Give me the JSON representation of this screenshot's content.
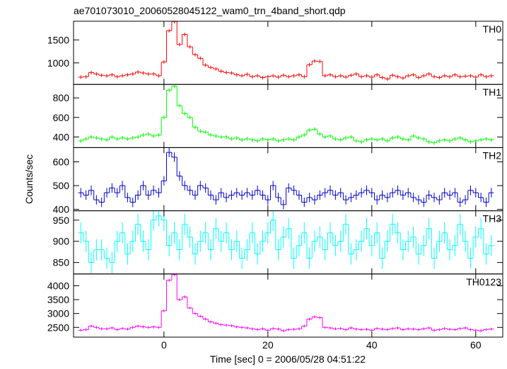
{
  "chart_data": {
    "type": "step",
    "title": "ae701073010_20060528045122_wam0_trn_4band_short.qdp",
    "y_label": "Counts/sec",
    "x_label": "Time [sec] 0 = 2006/05/28 04:51:22",
    "x": [
      -16,
      -15,
      -14,
      -13,
      -12,
      -11,
      -10,
      -9,
      -8,
      -7,
      -6,
      -5,
      -4,
      -3,
      -2,
      -1,
      0,
      1,
      2,
      3,
      4,
      5,
      6,
      7,
      8,
      9,
      10,
      11,
      12,
      13,
      14,
      15,
      16,
      17,
      18,
      19,
      20,
      21,
      22,
      23,
      24,
      25,
      26,
      27,
      28,
      29,
      30,
      31,
      32,
      33,
      34,
      35,
      36,
      37,
      38,
      39,
      40,
      41,
      42,
      43,
      44,
      45,
      46,
      47,
      48,
      49,
      50,
      51,
      52,
      53,
      54,
      55,
      56,
      57,
      58,
      59,
      60,
      61,
      62,
      63
    ],
    "xlim": [
      -17.4,
      65.2
    ],
    "xticks": [
      0,
      20,
      40,
      60
    ],
    "series": [
      {
        "name": "TH0",
        "color": "#ff0000",
        "error": 40,
        "ylim": [
          531,
          1906
        ],
        "yticks": [
          1000,
          1500
        ],
        "values": [
          690,
          700,
          790,
          760,
          730,
          720,
          740,
          700,
          720,
          740,
          760,
          800,
          780,
          760,
          760,
          720,
          1020,
          1700,
          1900,
          1400,
          1620,
          1350,
          1180,
          1100,
          950,
          900,
          870,
          820,
          790,
          780,
          740,
          720,
          750,
          700,
          720,
          680,
          700,
          720,
          690,
          730,
          700,
          720,
          740,
          700,
          960,
          1040,
          1030,
          720,
          740,
          700,
          720,
          690,
          730,
          760,
          700,
          720,
          690,
          740,
          680,
          650,
          730,
          700,
          670,
          720,
          740,
          680,
          720,
          760,
          700,
          680,
          720,
          700,
          740,
          700,
          710,
          720,
          690,
          740,
          700,
          720
        ]
      },
      {
        "name": "TH1",
        "color": "#00ff00",
        "error": 20,
        "ylim": [
          291,
          938
        ],
        "yticks": [
          400,
          600,
          800
        ],
        "values": [
          360,
          380,
          400,
          390,
          380,
          370,
          400,
          380,
          390,
          380,
          390,
          400,
          420,
          430,
          410,
          420,
          600,
          880,
          920,
          720,
          640,
          600,
          500,
          460,
          450,
          420,
          410,
          400,
          400,
          380,
          390,
          370,
          380,
          370,
          360,
          380,
          370,
          380,
          360,
          370,
          380,
          370,
          400,
          420,
          470,
          480,
          430,
          400,
          410,
          380,
          370,
          390,
          400,
          360,
          350,
          370,
          380,
          370,
          380,
          360,
          390,
          400,
          380,
          370,
          410,
          390,
          380,
          350,
          340,
          360,
          370,
          360,
          380,
          390,
          370,
          350,
          360,
          370,
          380,
          370
        ]
      },
      {
        "name": "TH2",
        "color": "#0000cc",
        "error": 20,
        "ylim": [
          394,
          660
        ],
        "yticks": [
          400,
          500,
          600
        ],
        "values": [
          470,
          460,
          480,
          440,
          430,
          470,
          490,
          470,
          500,
          450,
          430,
          460,
          500,
          460,
          480,
          470,
          520,
          640,
          620,
          540,
          500,
          480,
          460,
          500,
          490,
          460,
          440,
          470,
          450,
          460,
          470,
          460,
          470,
          460,
          480,
          460,
          440,
          500,
          450,
          420,
          490,
          480,
          460,
          430,
          450,
          440,
          460,
          470,
          480,
          460,
          470,
          440,
          450,
          460,
          470,
          480,
          470,
          440,
          460,
          450,
          470,
          480,
          460,
          470,
          450,
          440,
          430,
          460,
          450,
          440,
          470,
          460,
          470,
          430,
          440,
          480,
          470,
          450,
          430,
          470
        ]
      },
      {
        "name": "TH3",
        "color": "#00ffff",
        "error": 25,
        "ylim": [
          823,
          972
        ],
        "yticks": [
          850,
          900,
          950
        ],
        "values": [
          920,
          900,
          850,
          880,
          880,
          860,
          850,
          900,
          920,
          870,
          900,
          940,
          900,
          880,
          950,
          960,
          950,
          890,
          920,
          880,
          940,
          910,
          870,
          900,
          920,
          880,
          930,
          900,
          920,
          880,
          900,
          860,
          880,
          920,
          870,
          900,
          920,
          950,
          880,
          910,
          930,
          860,
          890,
          920,
          860,
          900,
          910,
          880,
          920,
          890,
          900,
          940,
          870,
          880,
          900,
          930,
          890,
          920,
          860,
          900,
          940,
          920,
          880,
          900,
          910,
          870,
          890,
          930,
          860,
          900,
          920,
          880,
          890,
          940,
          900,
          860,
          910,
          930,
          870,
          890
        ]
      },
      {
        "name": "TH0123",
        "color": "#ff00ff",
        "error": 50,
        "ylim": [
          2150,
          4425
        ],
        "yticks": [
          2500,
          3000,
          3500,
          4000
        ],
        "values": [
          2400,
          2420,
          2550,
          2500,
          2450,
          2450,
          2480,
          2420,
          2460,
          2440,
          2500,
          2550,
          2520,
          2500,
          2520,
          2500,
          3100,
          4200,
          4400,
          3500,
          3600,
          3200,
          3000,
          2900,
          2800,
          2700,
          2650,
          2600,
          2580,
          2560,
          2520,
          2500,
          2480,
          2450,
          2420,
          2450,
          2400,
          2460,
          2440,
          2380,
          2420,
          2430,
          2450,
          2550,
          2800,
          2880,
          2850,
          2500,
          2480,
          2450,
          2460,
          2420,
          2480,
          2440,
          2420,
          2430,
          2400,
          2460,
          2440,
          2420,
          2460,
          2480,
          2420,
          2450,
          2440,
          2420,
          2450,
          2480,
          2400,
          2420,
          2460,
          2430,
          2420,
          2460,
          2480,
          2420,
          2400,
          2380,
          2420,
          2440
        ]
      }
    ]
  }
}
